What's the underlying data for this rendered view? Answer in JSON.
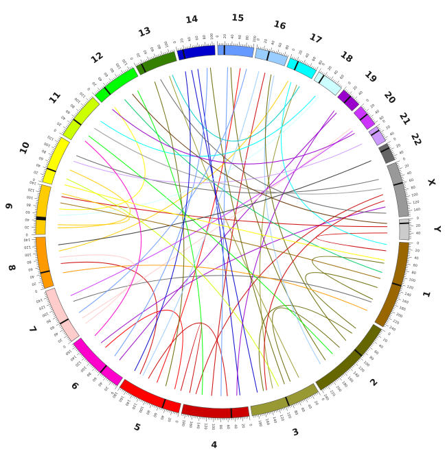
{
  "chart_data": {
    "type": "chord",
    "chromosomes": [
      {
        "label": "1",
        "length": 249,
        "color": "#996600",
        "bands": [
          123
        ]
      },
      {
        "label": "2",
        "length": 243,
        "color": "#666600",
        "bands": [
          93
        ]
      },
      {
        "label": "3",
        "length": 198,
        "color": "#999933",
        "bands": [
          91
        ]
      },
      {
        "label": "4",
        "length": 191,
        "color": "#cc0000",
        "bands": [
          50
        ]
      },
      {
        "label": "5",
        "length": 181,
        "color": "#ff0000",
        "bands": [
          48
        ]
      },
      {
        "label": "6",
        "length": 171,
        "color": "#ff00cc",
        "bands": [
          60
        ]
      },
      {
        "label": "7",
        "length": 159,
        "color": "#ffcccc",
        "bands": [
          59
        ]
      },
      {
        "label": "8",
        "length": 146,
        "color": "#ff9900",
        "bands": [
          45
        ]
      },
      {
        "label": "9",
        "length": 141,
        "color": "#ffcc00",
        "bands": [
          43,
          45,
          47,
          49
        ]
      },
      {
        "label": "10",
        "length": 136,
        "color": "#ffff00",
        "bands": [
          40
        ]
      },
      {
        "label": "11",
        "length": 135,
        "color": "#ccff00",
        "bands": [
          53
        ]
      },
      {
        "label": "12",
        "length": 133,
        "color": "#00ff00",
        "bands": [
          35
        ]
      },
      {
        "label": "13",
        "length": 115,
        "color": "#358000",
        "bands": [
          17
        ]
      },
      {
        "label": "14",
        "length": 107,
        "color": "#0000cc",
        "bands": [
          17
        ]
      },
      {
        "label": "15",
        "length": 102,
        "color": "#6699ff",
        "bands": [
          19
        ]
      },
      {
        "label": "16",
        "length": 90,
        "color": "#99ccff",
        "bands": [
          36
        ]
      },
      {
        "label": "17",
        "length": 81,
        "color": "#00ffff",
        "bands": [
          24
        ]
      },
      {
        "label": "18",
        "length": 78,
        "color": "#ccffff",
        "bands": [
          17
        ]
      },
      {
        "label": "19",
        "length": 59,
        "color": "#9900cc",
        "bands": [
          26
        ]
      },
      {
        "label": "20",
        "length": 63,
        "color": "#cc33ff",
        "bands": [
          28
        ]
      },
      {
        "label": "21",
        "length": 48,
        "color": "#cc99ff",
        "bands": [
          13
        ]
      },
      {
        "label": "22",
        "length": 51,
        "color": "#666666",
        "bands": [
          14
        ]
      },
      {
        "label": "X",
        "length": 155,
        "color": "#999999",
        "bands": [
          60
        ]
      },
      {
        "label": "Y",
        "length": 59,
        "color": "#cccccc",
        "bands": [
          12
        ]
      }
    ],
    "links": [
      {
        "from": [
          "1",
          30
        ],
        "to": [
          "Y",
          40
        ],
        "color": "#cc0000"
      },
      {
        "from": [
          "1",
          70
        ],
        "to": [
          "1",
          190
        ],
        "color": "#666600"
      },
      {
        "from": [
          "1",
          150
        ],
        "to": [
          "2",
          40
        ],
        "color": "#666600"
      },
      {
        "from": [
          "2",
          60
        ],
        "to": [
          "3",
          150
        ],
        "color": "#666600"
      },
      {
        "from": [
          "2",
          120
        ],
        "to": [
          "3",
          60
        ],
        "color": "#666600"
      },
      {
        "from": [
          "2",
          180
        ],
        "to": [
          "15",
          40
        ],
        "color": "#666600"
      },
      {
        "from": [
          "3",
          30
        ],
        "to": [
          "13",
          80
        ],
        "color": "#999933"
      },
      {
        "from": [
          "3",
          120
        ],
        "to": [
          "17",
          50
        ],
        "color": "#999933"
      },
      {
        "from": [
          "4",
          20
        ],
        "to": [
          "14",
          50
        ],
        "color": "#0000cc"
      },
      {
        "from": [
          "4",
          60
        ],
        "to": [
          "5",
          120
        ],
        "color": "#cc0000"
      },
      {
        "from": [
          "4",
          110
        ],
        "to": [
          "16",
          40
        ],
        "color": "#cc0000"
      },
      {
        "from": [
          "4",
          160
        ],
        "to": [
          "X",
          80
        ],
        "color": "#cc0000"
      },
      {
        "from": [
          "5",
          30
        ],
        "to": [
          "6",
          100
        ],
        "color": "#ff0000"
      },
      {
        "from": [
          "5",
          90
        ],
        "to": [
          "15",
          70
        ],
        "color": "#ff0000"
      },
      {
        "from": [
          "5",
          150
        ],
        "to": [
          "8",
          60
        ],
        "color": "#cc0000"
      },
      {
        "from": [
          "6",
          40
        ],
        "to": [
          "19",
          30
        ],
        "color": "#9900cc"
      },
      {
        "from": [
          "6",
          120
        ],
        "to": [
          "X",
          120
        ],
        "color": "#9900cc"
      },
      {
        "from": [
          "7",
          40
        ],
        "to": [
          "20",
          30
        ],
        "color": "#ffcccc"
      },
      {
        "from": [
          "7",
          100
        ],
        "to": [
          "1",
          200
        ],
        "color": "#666666"
      },
      {
        "from": [
          "8",
          30
        ],
        "to": [
          "1",
          230
        ],
        "color": "#ff9900"
      },
      {
        "from": [
          "8",
          100
        ],
        "to": [
          "17",
          20
        ],
        "color": "#ffcc00"
      },
      {
        "from": [
          "9",
          20
        ],
        "to": [
          "10",
          60
        ],
        "color": "#ffcc00"
      },
      {
        "from": [
          "9",
          80
        ],
        "to": [
          "12",
          20
        ],
        "color": "#ffff00"
      },
      {
        "from": [
          "9",
          120
        ],
        "to": [
          "Y",
          20
        ],
        "color": "#cc0000"
      },
      {
        "from": [
          "10",
          30
        ],
        "to": [
          "3",
          100
        ],
        "color": "#ccff00"
      },
      {
        "from": [
          "10",
          110
        ],
        "to": [
          "X",
          30
        ],
        "color": "#666666"
      },
      {
        "from": [
          "11",
          40
        ],
        "to": [
          "2",
          150
        ],
        "color": "#00ff00"
      },
      {
        "from": [
          "11",
          100
        ],
        "to": [
          "18",
          30
        ],
        "color": "#00ffff"
      },
      {
        "from": [
          "12",
          60
        ],
        "to": [
          "1",
          100
        ],
        "color": "#00cc66"
      },
      {
        "from": [
          "12",
          110
        ],
        "to": [
          "4",
          140
        ],
        "color": "#00ff00"
      },
      {
        "from": [
          "13",
          30
        ],
        "to": [
          "5",
          60
        ],
        "color": "#666600"
      },
      {
        "from": [
          "13",
          90
        ],
        "to": [
          "17",
          60
        ],
        "color": "#00cccc"
      },
      {
        "from": [
          "14",
          30
        ],
        "to": [
          "3",
          170
        ],
        "color": "#0000cc"
      },
      {
        "from": [
          "14",
          80
        ],
        "to": [
          "6",
          60
        ],
        "color": "#6699ff"
      },
      {
        "from": [
          "15",
          30
        ],
        "to": [
          "4",
          80
        ],
        "color": "#6699ff"
      },
      {
        "from": [
          "16",
          20
        ],
        "to": [
          "5",
          140
        ],
        "color": "#99ccff"
      },
      {
        "from": [
          "16",
          70
        ],
        "to": [
          "2",
          200
        ],
        "color": "#99ccff"
      },
      {
        "from": [
          "17",
          30
        ],
        "to": [
          "1",
          10
        ],
        "color": "#00ffff"
      },
      {
        "from": [
          "18",
          40
        ],
        "to": [
          "9",
          60
        ],
        "color": "#ccffff"
      },
      {
        "from": [
          "19",
          20
        ],
        "to": [
          "4",
          30
        ],
        "color": "#9900cc"
      },
      {
        "from": [
          "20",
          40
        ],
        "to": [
          "7",
          120
        ],
        "color": "#cc33ff"
      },
      {
        "from": [
          "21",
          20
        ],
        "to": [
          "10",
          90
        ],
        "color": "#cc99ff"
      },
      {
        "from": [
          "22",
          25
        ],
        "to": [
          "8",
          120
        ],
        "color": "#333333"
      },
      {
        "from": [
          "X",
          60
        ],
        "to": [
          "11",
          70
        ],
        "color": "#999999"
      },
      {
        "from": [
          "X",
          140
        ],
        "to": [
          "13",
          50
        ],
        "color": "#666666"
      },
      {
        "from": [
          "Y",
          10
        ],
        "to": [
          "12",
          90
        ],
        "color": "#663300"
      },
      {
        "from": [
          "1",
          120
        ],
        "to": [
          "9",
          100
        ],
        "color": "#996600"
      },
      {
        "from": [
          "3",
          80
        ],
        "to": [
          "14",
          90
        ],
        "color": "#666600"
      },
      {
        "from": [
          "2",
          90
        ],
        "to": [
          "16",
          60
        ],
        "color": "#666600"
      },
      {
        "from": [
          "6",
          150
        ],
        "to": [
          "11",
          20
        ],
        "color": "#ff00cc"
      },
      {
        "from": [
          "7",
          20
        ],
        "to": [
          "8",
          80
        ],
        "color": "#ffcccc"
      },
      {
        "from": [
          "9",
          30
        ],
        "to": [
          "9",
          130
        ],
        "color": "#ffcc00"
      },
      {
        "from": [
          "5",
          10
        ],
        "to": [
          "4",
          180
        ],
        "color": "#cc0000"
      },
      {
        "from": [
          "15",
          90
        ],
        "to": [
          "7",
          60
        ],
        "color": "#6699ff"
      },
      {
        "from": [
          "10",
          10
        ],
        "to": [
          "1",
          60
        ],
        "color": "#ffff00"
      },
      {
        "from": [
          "12",
          10
        ],
        "to": [
          "20",
          50
        ],
        "color": "#9900cc"
      },
      {
        "from": [
          "3",
          140
        ],
        "to": [
          "X",
          100
        ],
        "color": "#cc0000"
      },
      {
        "from": [
          "14",
          10
        ],
        "to": [
          "5",
          170
        ],
        "color": "#0000cc"
      }
    ]
  }
}
